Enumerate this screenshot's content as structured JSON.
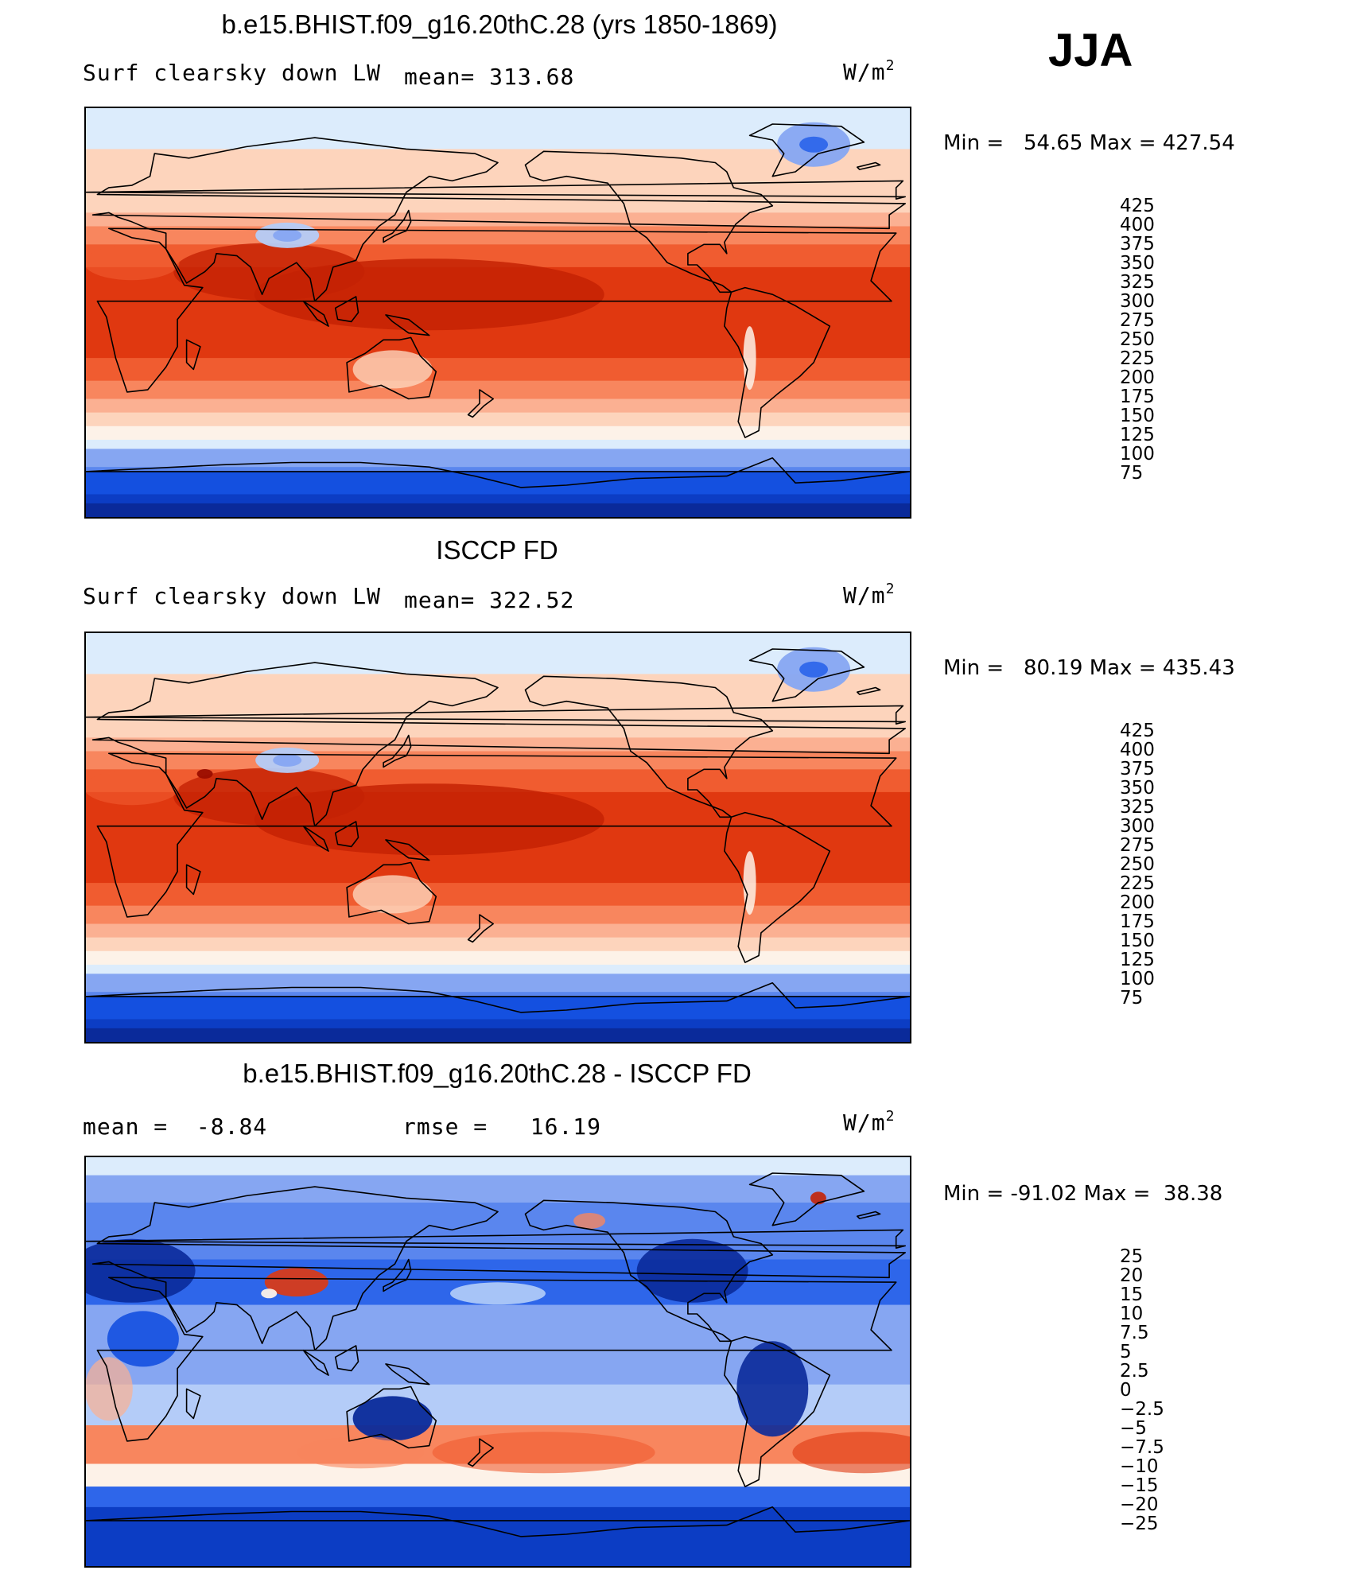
{
  "season": "JJA",
  "units_label": "W/m",
  "units_exp": "2",
  "icons": [
    "coastline-map"
  ],
  "colors": {
    "abs_palette": [
      "#0a1470",
      "#0a2a9a",
      "#0c3dc4",
      "#1450e0",
      "#2e66ea",
      "#5a86ee",
      "#86a6f2",
      "#b4ccf8",
      "#dcecfc",
      "#fdf2e8",
      "#fdd4bc",
      "#fbb092",
      "#f8865e",
      "#f05c30",
      "#e03810",
      "#c42204",
      "#9a0d00"
    ],
    "diff_palette": [
      "#0a1470",
      "#0a2a9a",
      "#0c3dc4",
      "#1450e0",
      "#2e66ea",
      "#5a86ee",
      "#86a6f2",
      "#b4ccf8",
      "#dcecfc",
      "#fdf2e8",
      "#fdd4bc",
      "#fbb092",
      "#f8865e",
      "#f05c30",
      "#e03810",
      "#c42204",
      "#9a0d00"
    ]
  },
  "chart_data": [
    {
      "type": "heatmap",
      "title": "b.e15.BHIST.f09_g16.20thC.28 (yrs 1850-1869)",
      "variable": "Surf clearsky down LW",
      "mean_label": "mean=",
      "mean": "313.68",
      "min_label": "Min =",
      "min": "54.65",
      "max_label": "Max =",
      "max": "427.54",
      "colorbar_levels": [
        "425",
        "400",
        "375",
        "350",
        "325",
        "300",
        "275",
        "250",
        "225",
        "200",
        "175",
        "150",
        "125",
        "100",
        "75"
      ],
      "palette": "abs"
    },
    {
      "type": "heatmap",
      "title": "ISCCP FD",
      "variable": "Surf clearsky down LW",
      "mean_label": "mean=",
      "mean": "322.52",
      "min_label": "Min =",
      "min": "80.19",
      "max_label": "Max =",
      "max": "435.43",
      "colorbar_levels": [
        "425",
        "400",
        "375",
        "350",
        "325",
        "300",
        "275",
        "250",
        "225",
        "200",
        "175",
        "150",
        "125",
        "100",
        "75"
      ],
      "palette": "abs"
    },
    {
      "type": "heatmap",
      "title": "b.e15.BHIST.f09_g16.20thC.28 - ISCCP FD",
      "mean_label": "mean =",
      "mean": "-8.84",
      "rmse_label": "rmse =",
      "rmse": "16.19",
      "min_label": "Min =",
      "min": "-91.02",
      "max_label": "Max =",
      "max": "38.38",
      "colorbar_levels": [
        "25",
        "20",
        "15",
        "10",
        "7.5",
        "5",
        "2.5",
        "0",
        "-2.5",
        "-5",
        "-7.5",
        "-10",
        "-15",
        "-20",
        "-25"
      ],
      "palette": "diff"
    }
  ]
}
